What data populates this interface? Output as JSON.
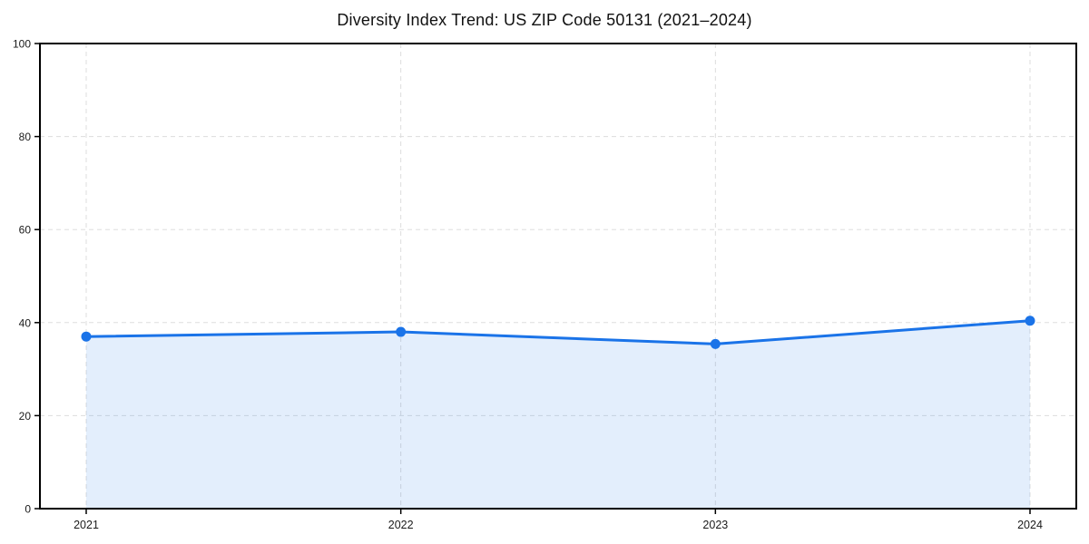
{
  "chart_data": {
    "type": "area",
    "title": "Diversity Index Trend: US ZIP Code 50131 (2021–2024)",
    "categories": [
      "2021",
      "2022",
      "2023",
      "2024"
    ],
    "values": [
      37,
      38,
      35.4,
      40.4
    ],
    "xlabel": "",
    "ylabel": "",
    "ylim": [
      0,
      100
    ],
    "yticks": [
      0,
      20,
      40,
      60,
      80,
      100
    ],
    "grid": true,
    "legend": false,
    "colors": {
      "line": "#1a73e8",
      "marker": "#1a73e8",
      "fill": "#1a73e8",
      "fill_opacity": 0.12,
      "gridline": "#dddddd",
      "spine": "#000000",
      "tick_label": "#1a1a1a",
      "title": "#111111",
      "background": "#ffffff"
    }
  }
}
